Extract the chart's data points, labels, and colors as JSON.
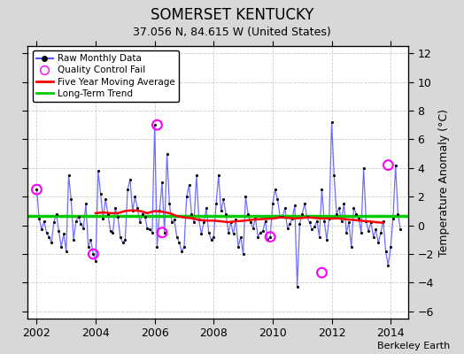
{
  "title": "SOMERSET KENTUCKY",
  "subtitle": "37.056 N, 84.615 W (United States)",
  "ylabel": "Temperature Anomaly (°C)",
  "credit": "Berkeley Earth",
  "ylim": [
    -6.5,
    12.5
  ],
  "xlim": [
    2001.7,
    2014.6
  ],
  "xticks": [
    2002,
    2004,
    2006,
    2008,
    2010,
    2012,
    2014
  ],
  "yticks": [
    -6,
    -4,
    -2,
    0,
    2,
    4,
    6,
    8,
    10,
    12
  ],
  "fig_bg_color": "#d8d8d8",
  "plot_bg_color": "#ffffff",
  "raw_color": "#5555ff",
  "ma_color": "red",
  "trend_color": "#00cc00",
  "qc_color": "magenta",
  "raw_data_x": [
    2002.0,
    2002.083,
    2002.167,
    2002.25,
    2002.333,
    2002.417,
    2002.5,
    2002.583,
    2002.667,
    2002.75,
    2002.833,
    2002.917,
    2003.0,
    2003.083,
    2003.167,
    2003.25,
    2003.333,
    2003.417,
    2003.5,
    2003.583,
    2003.667,
    2003.75,
    2003.833,
    2003.917,
    2004.0,
    2004.083,
    2004.167,
    2004.25,
    2004.333,
    2004.417,
    2004.5,
    2004.583,
    2004.667,
    2004.75,
    2004.833,
    2004.917,
    2005.0,
    2005.083,
    2005.167,
    2005.25,
    2005.333,
    2005.417,
    2005.5,
    2005.583,
    2005.667,
    2005.75,
    2005.833,
    2005.917,
    2006.0,
    2006.083,
    2006.167,
    2006.25,
    2006.333,
    2006.417,
    2006.5,
    2006.583,
    2006.667,
    2006.75,
    2006.833,
    2006.917,
    2007.0,
    2007.083,
    2007.167,
    2007.25,
    2007.333,
    2007.417,
    2007.5,
    2007.583,
    2007.667,
    2007.75,
    2007.833,
    2007.917,
    2008.0,
    2008.083,
    2008.167,
    2008.25,
    2008.333,
    2008.417,
    2008.5,
    2008.583,
    2008.667,
    2008.75,
    2008.833,
    2008.917,
    2009.0,
    2009.083,
    2009.167,
    2009.25,
    2009.333,
    2009.417,
    2009.5,
    2009.583,
    2009.667,
    2009.75,
    2009.833,
    2009.917,
    2010.0,
    2010.083,
    2010.167,
    2010.25,
    2010.333,
    2010.417,
    2010.5,
    2010.583,
    2010.667,
    2010.75,
    2010.833,
    2010.917,
    2011.0,
    2011.083,
    2011.167,
    2011.25,
    2011.333,
    2011.417,
    2011.5,
    2011.583,
    2011.667,
    2011.75,
    2011.833,
    2011.917,
    2012.0,
    2012.083,
    2012.167,
    2012.25,
    2012.333,
    2012.417,
    2012.5,
    2012.583,
    2012.667,
    2012.75,
    2012.833,
    2012.917,
    2013.0,
    2013.083,
    2013.167,
    2013.25,
    2013.333,
    2013.417,
    2013.5,
    2013.583,
    2013.667,
    2013.75,
    2013.833,
    2013.917,
    2014.0,
    2014.083,
    2014.167,
    2014.25,
    2014.333
  ],
  "raw_data_y": [
    2.5,
    0.5,
    -0.3,
    0.3,
    -0.5,
    -0.8,
    -1.2,
    0.2,
    0.8,
    -0.4,
    -1.5,
    -0.6,
    -1.8,
    3.5,
    1.8,
    -1.0,
    0.3,
    0.6,
    0.1,
    -0.2,
    1.5,
    -1.5,
    -1.0,
    -2.0,
    -2.5,
    3.8,
    2.2,
    0.5,
    1.8,
    0.8,
    -0.4,
    -0.5,
    1.2,
    0.6,
    -0.8,
    -1.2,
    -1.0,
    2.5,
    3.2,
    1.0,
    2.0,
    1.2,
    0.2,
    0.8,
    0.6,
    -0.2,
    -0.3,
    -0.5,
    7.0,
    -1.5,
    1.0,
    3.0,
    -0.5,
    5.0,
    1.5,
    0.2,
    0.4,
    -0.8,
    -1.2,
    -1.8,
    -1.5,
    2.0,
    2.8,
    0.8,
    0.2,
    3.5,
    0.4,
    -0.6,
    0.2,
    1.2,
    -0.5,
    -1.0,
    -0.8,
    1.5,
    3.5,
    1.0,
    1.8,
    0.8,
    -0.5,
    0.2,
    -0.6,
    0.4,
    -1.5,
    -0.8,
    -2.0,
    2.0,
    0.8,
    0.2,
    -0.2,
    0.5,
    -0.8,
    -0.5,
    -0.4,
    0.3,
    -1.0,
    -0.8,
    1.5,
    2.5,
    1.8,
    0.6,
    0.6,
    1.2,
    -0.2,
    0.1,
    0.5,
    1.4,
    -4.3,
    0.1,
    0.8,
    1.5,
    0.6,
    0.2,
    -0.3,
    -0.1,
    0.3,
    -0.8,
    2.5,
    0.3,
    -1.0,
    0.5,
    7.2,
    3.5,
    0.8,
    1.2,
    0.3,
    1.5,
    -0.5,
    0.2,
    -1.5,
    1.2,
    0.8,
    0.5,
    -0.5,
    4.0,
    0.3,
    -0.4,
    0.2,
    -0.8,
    -0.3,
    -1.2,
    -0.5,
    0.3,
    -1.8,
    -2.8,
    -1.5,
    0.5,
    4.2,
    0.8,
    -0.3
  ],
  "qc_fail_x": [
    2002.0,
    2003.917,
    2006.083,
    2006.25,
    2009.917,
    2011.667,
    2013.917
  ],
  "qc_fail_y": [
    2.5,
    -2.0,
    7.0,
    -0.5,
    -0.8,
    -3.3,
    4.2
  ],
  "moving_avg_x": [
    2004.0,
    2004.25,
    2004.5,
    2004.75,
    2005.0,
    2005.25,
    2005.5,
    2005.75,
    2006.0,
    2006.25,
    2006.5,
    2006.75,
    2007.0,
    2007.25,
    2007.5,
    2007.75,
    2008.0,
    2008.25,
    2008.5,
    2008.75,
    2009.0,
    2009.25,
    2009.5,
    2009.75,
    2010.0,
    2010.25,
    2010.5,
    2010.75,
    2011.0,
    2011.25,
    2011.5,
    2011.75,
    2012.0,
    2012.25,
    2012.5,
    2012.75,
    2013.0,
    2013.25,
    2013.5,
    2013.75
  ],
  "moving_avg_y": [
    0.85,
    0.9,
    0.85,
    0.85,
    1.0,
    1.05,
    1.0,
    0.85,
    1.0,
    0.95,
    0.85,
    0.65,
    0.55,
    0.5,
    0.38,
    0.33,
    0.33,
    0.28,
    0.22,
    0.28,
    0.32,
    0.38,
    0.42,
    0.45,
    0.48,
    0.55,
    0.52,
    0.48,
    0.52,
    0.55,
    0.5,
    0.48,
    0.48,
    0.48,
    0.42,
    0.38,
    0.32,
    0.28,
    0.22,
    0.18
  ],
  "trend_x": [
    2001.7,
    2014.6
  ],
  "trend_y": [
    0.65,
    0.65
  ]
}
